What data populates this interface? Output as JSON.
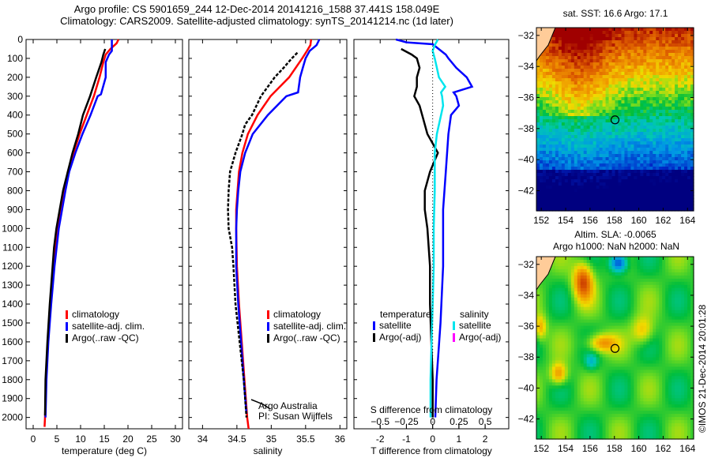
{
  "header": {
    "line1": "Argo profile: CS 5901659_244 12-Dec-2014 20141216_1588 37.441S 158.049E",
    "line2": "Climatology: CARS2009. Satellite-adjusted climatology: synTS_20141214.nc (1d later)"
  },
  "colors": {
    "climatology": "#ff0000",
    "satellite": "#0000ff",
    "argo": "#000000",
    "sal_satellite": "#00e5ee",
    "sal_argo": "#ff00ff",
    "land": "#ffcc99"
  },
  "chart_data": [
    {
      "type": "line",
      "id": "temperature",
      "xlabel": "temperature (deg C)",
      "ylabel": "",
      "xlim": [
        -1.5,
        31.5
      ],
      "ylim": [
        2060,
        0
      ],
      "xticks": [
        0,
        5,
        10,
        15,
        20,
        25,
        30
      ],
      "yticks": [
        0,
        100,
        200,
        300,
        400,
        500,
        600,
        700,
        800,
        900,
        1000,
        1100,
        1200,
        1300,
        1400,
        1500,
        1600,
        1700,
        1800,
        1900,
        2000
      ],
      "legend": {
        "placement": "center-left",
        "items": [
          "climatology",
          "satellite-adj. clim.",
          "Argo(..raw -QC)"
        ]
      },
      "series": [
        {
          "name": "climatology",
          "color": "#ff0000",
          "depth": [
            0,
            20,
            50,
            80,
            120,
            200,
            300,
            400,
            500,
            600,
            700,
            800,
            900,
            1000,
            1200,
            1400,
            1600,
            1800,
            2000,
            2050
          ],
          "values": [
            18.0,
            17.6,
            16.3,
            15.3,
            14.8,
            14.0,
            12.8,
            11.3,
            9.8,
            8.5,
            7.3,
            6.6,
            5.9,
            5.2,
            4.3,
            3.6,
            3.1,
            2.7,
            2.5,
            2.4
          ]
        },
        {
          "name": "satellite-adj. clim.",
          "color": "#0000ff",
          "depth": [
            0,
            60,
            80,
            120,
            200,
            290,
            300,
            400,
            500,
            600,
            700,
            800,
            900,
            1000,
            1200,
            1400,
            1600,
            1800,
            2000
          ],
          "values": [
            16.6,
            16.6,
            16.0,
            15.3,
            15.3,
            14.3,
            13.6,
            12.1,
            10.4,
            8.9,
            7.6,
            6.8,
            6.1,
            5.4,
            4.5,
            3.8,
            3.2,
            2.8,
            2.6
          ]
        },
        {
          "name": "Argo(..raw -QC)",
          "color": "#000000",
          "depth": [
            50,
            80,
            120,
            200,
            300,
            400,
            500,
            600,
            700,
            800,
            900,
            1000,
            1100,
            1200,
            1400,
            1600,
            1800,
            1990
          ],
          "values": [
            15.2,
            14.8,
            14.4,
            13.3,
            12.0,
            10.5,
            9.5,
            8.3,
            7.3,
            6.3,
            5.6,
            4.9,
            4.4,
            4.1,
            3.5,
            3.0,
            2.6,
            2.5
          ]
        }
      ]
    },
    {
      "type": "line",
      "id": "salinity",
      "xlabel": "salinity",
      "xlim": [
        33.8,
        36.1
      ],
      "ylim": [
        2060,
        0
      ],
      "xticks": [
        34,
        34.5,
        35,
        35.5,
        36
      ],
      "xtick_labels": [
        "34",
        "34.5",
        "35",
        "35.5",
        "36"
      ],
      "legend": {
        "placement": "bottom-right",
        "items": [
          "climatology",
          "satellite-adj. clim.",
          "Argo(..raw -QC)"
        ]
      },
      "annotation": [
        "Argo Australia",
        "PI: Susan Wijffels"
      ],
      "series": [
        {
          "name": "climatology",
          "color": "#ff0000",
          "depth": [
            0,
            30,
            60,
            100,
            200,
            300,
            400,
            500,
            600,
            700,
            800,
            900,
            1000,
            1200,
            1400,
            1600,
            1800,
            2000,
            2060
          ],
          "values": [
            35.58,
            35.57,
            35.52,
            35.45,
            35.26,
            34.99,
            34.8,
            34.66,
            34.58,
            34.53,
            34.51,
            34.49,
            34.49,
            34.5,
            34.53,
            34.57,
            34.61,
            34.65,
            34.67
          ]
        },
        {
          "name": "satellite-adj. clim.",
          "color": "#0000ff",
          "depth": [
            0,
            30,
            60,
            100,
            150,
            200,
            280,
            300,
            400,
            500,
            600,
            700,
            800,
            900,
            1000,
            1200,
            1400,
            1600,
            1800,
            1980
          ],
          "values": [
            35.7,
            35.66,
            35.56,
            35.5,
            35.46,
            35.42,
            35.39,
            35.22,
            34.95,
            34.73,
            34.62,
            34.55,
            34.52,
            34.5,
            34.49,
            34.49,
            34.52,
            34.56,
            34.6,
            34.64
          ]
        },
        {
          "name": "Argo(..raw -QC)",
          "color": "#000000",
          "depth": [
            70,
            100,
            150,
            200,
            300,
            400,
            450,
            500,
            600,
            700,
            800,
            900,
            1000,
            1100,
            1200,
            1400,
            1600,
            1800,
            2000
          ],
          "values": [
            35.38,
            35.3,
            35.18,
            35.05,
            34.85,
            34.72,
            34.62,
            34.58,
            34.48,
            34.4,
            34.38,
            34.37,
            34.38,
            34.43,
            34.45,
            34.48,
            34.54,
            34.6,
            34.64
          ]
        }
      ]
    },
    {
      "type": "line",
      "id": "difference",
      "xlabel": "T difference from climatology",
      "x2label": "S difference from climatology",
      "xlim": [
        -3,
        2.9
      ],
      "ylim": [
        2060,
        0
      ],
      "xticks": [
        -2,
        -1,
        0,
        1,
        2
      ],
      "x2ticks": [
        -0.5,
        -0.25,
        0,
        0.25,
        0.5
      ],
      "x2lim": [
        -0.75,
        0.725
      ],
      "legend": {
        "placement": "bottom",
        "groups": [
          {
            "title": "temperature",
            "items": [
              "satellite",
              "Argo(-adj)"
            ]
          },
          {
            "title": "salinity",
            "items": [
              "satellite",
              "Argo(-adj)"
            ]
          }
        ]
      },
      "series": [
        {
          "name": "temperature satellite",
          "color": "#0000ff",
          "axis": "T",
          "depth": [
            0,
            15,
            25,
            80,
            100,
            150,
            200,
            250,
            280,
            300,
            350,
            400,
            500,
            700,
            900,
            1200,
            1500,
            1800,
            2000
          ],
          "values": [
            -1.4,
            -1.0,
            0.0,
            0.5,
            0.6,
            0.9,
            1.3,
            1.5,
            0.8,
            0.9,
            1.0,
            0.7,
            0.6,
            0.5,
            0.4,
            0.4,
            0.3,
            0.15,
            0.1
          ]
        },
        {
          "name": "temperature Argo(-adj)",
          "color": "#000000",
          "axis": "T",
          "depth": [
            50,
            80,
            100,
            150,
            200,
            250,
            300,
            350,
            400,
            500,
            550,
            600,
            700,
            800,
            900,
            1000,
            1200,
            1400,
            1600,
            1800,
            2000
          ],
          "values": [
            -1.2,
            -0.8,
            -0.6,
            -0.5,
            -0.6,
            -0.6,
            -0.7,
            -0.5,
            -0.4,
            -0.2,
            0.0,
            0.2,
            -0.1,
            -0.3,
            -0.3,
            -0.2,
            -0.1,
            -0.1,
            -0.05,
            0.0,
            0.0
          ]
        },
        {
          "name": "salinity satellite",
          "color": "#00e5ee",
          "axis": "S",
          "depth": [
            0,
            30,
            60,
            100,
            150,
            200,
            250,
            280,
            300,
            350,
            400,
            500,
            600,
            800,
            1000,
            1200,
            1400,
            1600,
            1800,
            2000
          ],
          "values": [
            0.05,
            0.02,
            0.0,
            0.02,
            0.04,
            0.06,
            0.12,
            0.08,
            0.09,
            0.1,
            0.08,
            0.04,
            0.02,
            0.02,
            0.01,
            0.01,
            0.0,
            -0.01,
            -0.02,
            -0.02
          ]
        }
      ]
    }
  ],
  "maps": [
    {
      "id": "sst",
      "title_line1": "sat. SST: 16.6 Argo: 17.1",
      "xticks": [
        "152",
        "154",
        "156",
        "158",
        "160",
        "162",
        "164"
      ],
      "yticks": [
        "-32",
        "-34",
        "-36",
        "-38",
        "-40",
        "-42"
      ],
      "marker": {
        "lon": 158.05,
        "lat": -37.44
      }
    },
    {
      "id": "sla",
      "title_line1": "Altim. SLA: -0.0065",
      "title_line2": "Argo h1000: NaN h2000: NaN",
      "xticks": [
        "152",
        "154",
        "156",
        "158",
        "160",
        "162",
        "164"
      ],
      "yticks": [
        "-32",
        "-34",
        "-36",
        "-38",
        "-40",
        "-42"
      ],
      "marker": {
        "lon": 158.05,
        "lat": -37.44
      }
    }
  ],
  "footer": {
    "copyright": "©IMOS 21-Dec-2014 20:01:28"
  }
}
